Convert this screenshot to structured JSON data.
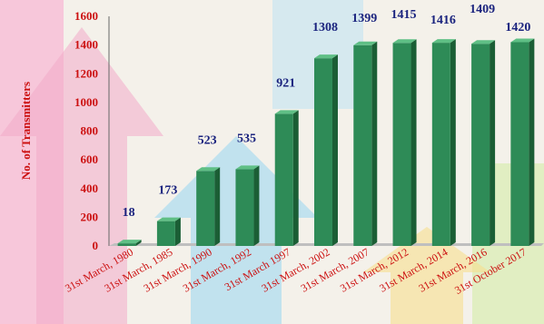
{
  "chart_data": {
    "type": "bar",
    "title": "",
    "xlabel": "",
    "ylabel": "No. of Transmitters",
    "ylim": [
      0,
      1600
    ],
    "yticks": [
      0,
      200,
      400,
      600,
      800,
      1000,
      1200,
      1400,
      1600
    ],
    "categories": [
      "31st March, 1980",
      "31st March, 1985",
      "31st March, 1990",
      "31st March, 1992",
      "31st March 1997",
      "31st March, 2002",
      "31st March, 2007",
      "31st March, 2012",
      "31st March, 2014",
      "31st March, 2016",
      "31st October 2017"
    ],
    "values": [
      18,
      173,
      523,
      535,
      921,
      1308,
      1399,
      1415,
      1416,
      1409,
      1420
    ],
    "value_labels": [
      "18",
      "173",
      "523",
      "535",
      "921",
      "1308",
      "1399",
      "1415",
      "1416",
      "1409",
      "1420"
    ],
    "colors": {
      "bar_front": "#2e8b57",
      "bar_side": "#1b5e35",
      "bar_top": "#5fbf85",
      "axis_text": "#cc1111",
      "value_text": "#1a237e"
    }
  }
}
